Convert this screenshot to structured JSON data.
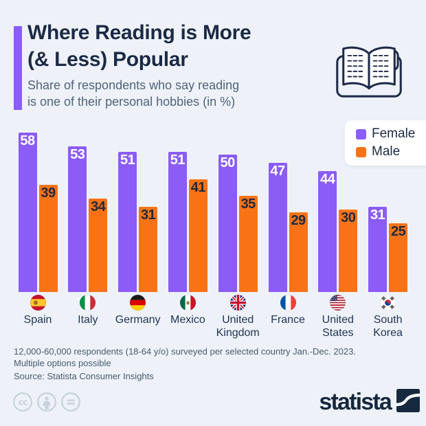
{
  "header": {
    "title_lines": [
      "Where Reading is More",
      "(& Less) Popular"
    ],
    "subtitle_lines": [
      "Share of respondents who say reading",
      "is one of their personal hobbies (in %)"
    ],
    "accent_color": "#8b5cf6",
    "icon": "open-book-icon"
  },
  "legend": {
    "items": [
      {
        "label": "Female",
        "color": "#8b5cf6"
      },
      {
        "label": "Male",
        "color": "#f97316"
      }
    ]
  },
  "chart_data": {
    "type": "bar",
    "title": "Where Reading is More (& Less) Popular",
    "subtitle": "Share of respondents who say reading is one of their personal hobbies (in %)",
    "categories": [
      "Spain",
      "Italy",
      "Germany",
      "Mexico",
      "United Kingdom",
      "France",
      "United States",
      "South Korea"
    ],
    "flags": [
      "flag-spain",
      "flag-italy",
      "flag-germany",
      "flag-mexico",
      "flag-united-kingdom",
      "flag-france",
      "flag-united-states",
      "flag-south-korea"
    ],
    "series": [
      {
        "name": "Female",
        "color": "#8b5cf6",
        "label_color": "#ffffff",
        "values": [
          58,
          53,
          51,
          51,
          50,
          47,
          44,
          31
        ]
      },
      {
        "name": "Male",
        "color": "#f97316",
        "label_color": "#1f2940",
        "values": [
          39,
          34,
          31,
          41,
          35,
          29,
          30,
          25
        ]
      }
    ],
    "ylim": [
      0,
      60
    ],
    "value_labels": true,
    "grid": false,
    "legend_position": "top-right"
  },
  "footer": {
    "note_lines": [
      "12,000-60,000 respondents (18-64 y/o) surveyed per selected country Jan.-Dec. 2023.",
      "Multiple options possible"
    ],
    "source": "Source: Statista Consumer Insights"
  },
  "branding": {
    "logo_text": "statista",
    "license_icons": [
      "cc-icon",
      "attribution-person-icon",
      "equals-icon"
    ]
  }
}
